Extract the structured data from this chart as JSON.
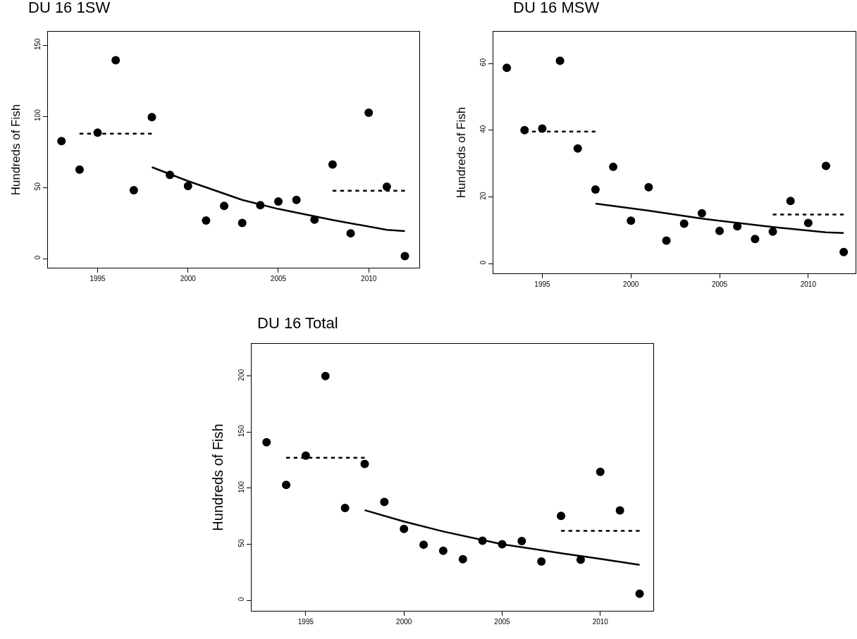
{
  "chart_data": [
    {
      "type": "scatter",
      "title": "DU 16 1SW",
      "ylabel": "Hundreds of Fish",
      "x": [
        1993,
        1994,
        1995,
        1996,
        1997,
        1998,
        1999,
        2000,
        2001,
        2002,
        2003,
        2004,
        2005,
        2006,
        2007,
        2008,
        2009,
        2010,
        2011,
        2012
      ],
      "xlim": [
        1992.25,
        2012.8
      ],
      "xticks": [
        1995,
        2000,
        2005,
        2010
      ],
      "ylim": [
        -6.4,
        159.5
      ],
      "yticks": [
        0,
        50,
        100,
        150
      ],
      "grid": false,
      "series": [
        {
          "type": "scatter",
          "color": "#000000",
          "marker": "circle",
          "values": [
            82.6,
            62.6,
            88.5,
            139.5,
            48.1,
            99.5,
            58.9,
            51,
            26.8,
            37.1,
            25,
            37.6,
            40.2,
            41.3,
            27.4,
            66.1,
            17.8,
            102.6,
            50.5,
            1.8
          ]
        },
        {
          "type": "line",
          "color": "#000000",
          "marker": "none",
          "line_style": "solid",
          "x": [
            1998,
            2000,
            2003,
            2005,
            2008,
            2011,
            2012
          ],
          "values": [
            64.3,
            54.5,
            41.3,
            34.9,
            27.2,
            20.2,
            19.3
          ]
        },
        {
          "type": "line",
          "color": "#000000",
          "marker": "none",
          "line_style": "dashed",
          "x": [
            1994,
            1998
          ],
          "values": [
            87.8,
            87.8
          ]
        },
        {
          "type": "line",
          "color": "#000000",
          "marker": "none",
          "line_style": "dashed",
          "x": [
            2008,
            2012
          ],
          "values": [
            47.7,
            47.7
          ]
        }
      ]
    },
    {
      "type": "scatter",
      "title": "DU 16 MSW",
      "ylabel": "Hundreds of Fish",
      "x": [
        1993,
        1994,
        1995,
        1996,
        1997,
        1998,
        1999,
        2000,
        2001,
        2002,
        2003,
        2004,
        2005,
        2006,
        2007,
        2008,
        2009,
        2010,
        2011,
        2012
      ],
      "xlim": [
        1992.24,
        2012.67
      ],
      "xticks": [
        1995,
        2000,
        2005,
        2010
      ],
      "ylim": [
        -2.9,
        69.5
      ],
      "yticks": [
        0,
        20,
        40,
        60
      ],
      "grid": false,
      "series": [
        {
          "type": "scatter",
          "color": "#000000",
          "marker": "circle",
          "values": [
            58.7,
            40,
            40.5,
            60.8,
            34.5,
            22.2,
            29,
            12.9,
            22.9,
            6.9,
            12,
            15.1,
            9.8,
            11.2,
            7.4,
            9.6,
            18.8,
            12.2,
            29.3,
            3.5
          ]
        },
        {
          "type": "line",
          "color": "#000000",
          "marker": "none",
          "line_style": "solid",
          "x": [
            1998,
            2001,
            2004,
            2008,
            2011,
            2012
          ],
          "values": [
            18,
            15.9,
            13.5,
            11,
            9.4,
            9.2
          ]
        },
        {
          "type": "line",
          "color": "#000000",
          "marker": "none",
          "line_style": "dashed",
          "x": [
            1994,
            1998
          ],
          "values": [
            39.6,
            39.6
          ]
        },
        {
          "type": "line",
          "color": "#000000",
          "marker": "none",
          "line_style": "dashed",
          "x": [
            2008,
            2012
          ],
          "values": [
            14.7,
            14.7
          ]
        }
      ]
    },
    {
      "type": "scatter",
      "title": "DU 16 Total",
      "ylabel": "Hundreds of Fish",
      "x": [
        1993,
        1994,
        1995,
        1996,
        1997,
        1998,
        1999,
        2000,
        2001,
        2002,
        2003,
        2004,
        2005,
        2006,
        2007,
        2008,
        2009,
        2010,
        2011,
        2012
      ],
      "xlim": [
        1992.24,
        2012.7
      ],
      "xticks": [
        1995,
        2000,
        2005,
        2010
      ],
      "ylim": [
        -9.4,
        228.8
      ],
      "yticks": [
        0,
        50,
        100,
        150,
        200
      ],
      "grid": false,
      "series": [
        {
          "type": "scatter",
          "color": "#000000",
          "marker": "circle",
          "values": [
            141,
            103,
            129,
            200,
            82.4,
            121.6,
            87.7,
            63.7,
            49.6,
            44.2,
            36.7,
            53.1,
            50,
            52.8,
            34.6,
            75.3,
            36.2,
            114.5,
            80.2,
            5.8
          ]
        },
        {
          "type": "line",
          "color": "#000000",
          "marker": "none",
          "line_style": "solid",
          "x": [
            1998,
            2000,
            2002,
            2005,
            2008,
            2010,
            2012
          ],
          "values": [
            80.4,
            70.3,
            61.4,
            50,
            42,
            36.9,
            31.6
          ]
        },
        {
          "type": "line",
          "color": "#000000",
          "marker": "none",
          "line_style": "dashed",
          "x": [
            1994,
            1998
          ],
          "values": [
            127.2,
            127.2
          ]
        },
        {
          "type": "line",
          "color": "#000000",
          "marker": "none",
          "line_style": "dashed",
          "x": [
            2008,
            2012
          ],
          "values": [
            62,
            62
          ]
        }
      ]
    }
  ]
}
